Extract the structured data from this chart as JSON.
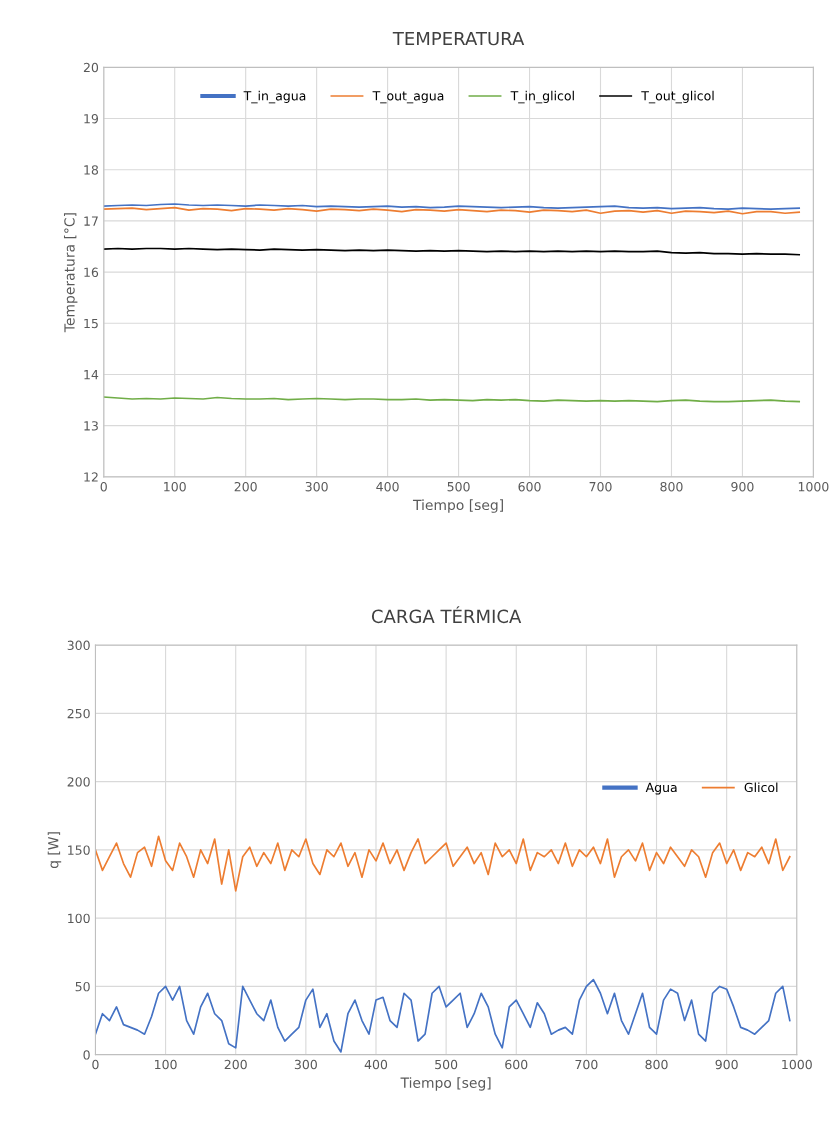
{
  "chart_data": [
    {
      "type": "line",
      "title": "TEMPERATURA",
      "xlabel": "Tiempo [seg]",
      "ylabel": "Temperatura [°C]",
      "x": [
        0,
        20,
        40,
        60,
        80,
        100,
        120,
        140,
        160,
        180,
        200,
        220,
        240,
        260,
        280,
        300,
        320,
        340,
        360,
        380,
        400,
        420,
        440,
        460,
        480,
        500,
        520,
        540,
        560,
        580,
        600,
        620,
        640,
        660,
        680,
        700,
        720,
        740,
        760,
        780,
        800,
        820,
        840,
        860,
        880,
        900,
        920,
        940,
        960,
        980
      ],
      "series": [
        {
          "name": "T_in_agua",
          "color": "#4472c4",
          "values": [
            17.29,
            17.3,
            17.31,
            17.3,
            17.32,
            17.33,
            17.31,
            17.3,
            17.31,
            17.3,
            17.29,
            17.31,
            17.3,
            17.29,
            17.3,
            17.28,
            17.29,
            17.28,
            17.27,
            17.28,
            17.29,
            17.27,
            17.28,
            17.26,
            17.27,
            17.29,
            17.28,
            17.27,
            17.26,
            17.27,
            17.28,
            17.26,
            17.25,
            17.26,
            17.27,
            17.28,
            17.29,
            17.26,
            17.25,
            17.26,
            17.24,
            17.25,
            17.26,
            17.24,
            17.23,
            17.25,
            17.24,
            17.23,
            17.24,
            17.25
          ]
        },
        {
          "name": "T_out_agua",
          "color": "#ed7d31",
          "values": [
            17.23,
            17.24,
            17.25,
            17.22,
            17.24,
            17.26,
            17.21,
            17.24,
            17.23,
            17.2,
            17.24,
            17.23,
            17.21,
            17.24,
            17.22,
            17.19,
            17.23,
            17.22,
            17.2,
            17.23,
            17.21,
            17.18,
            17.22,
            17.21,
            17.19,
            17.22,
            17.2,
            17.18,
            17.21,
            17.2,
            17.17,
            17.21,
            17.2,
            17.18,
            17.21,
            17.15,
            17.19,
            17.2,
            17.17,
            17.2,
            17.15,
            17.19,
            17.18,
            17.16,
            17.19,
            17.14,
            17.18,
            17.18,
            17.15,
            17.17
          ]
        },
        {
          "name": "T_in_glicol",
          "color": "#70ad47",
          "values": [
            13.56,
            13.54,
            13.52,
            13.53,
            13.52,
            13.54,
            13.53,
            13.52,
            13.55,
            13.53,
            13.52,
            13.52,
            13.53,
            13.51,
            13.52,
            13.53,
            13.52,
            13.51,
            13.52,
            13.52,
            13.51,
            13.51,
            13.52,
            13.5,
            13.51,
            13.5,
            13.49,
            13.51,
            13.5,
            13.51,
            13.49,
            13.48,
            13.5,
            13.49,
            13.48,
            13.49,
            13.48,
            13.49,
            13.48,
            13.47,
            13.49,
            13.5,
            13.48,
            13.47,
            13.47,
            13.48,
            13.49,
            13.5,
            13.48,
            13.47
          ]
        },
        {
          "name": "T_out_glicol",
          "color": "#000000",
          "values": [
            16.45,
            16.46,
            16.45,
            16.46,
            16.46,
            16.45,
            16.46,
            16.45,
            16.44,
            16.45,
            16.44,
            16.43,
            16.45,
            16.44,
            16.43,
            16.44,
            16.43,
            16.42,
            16.43,
            16.42,
            16.43,
            16.42,
            16.41,
            16.42,
            16.41,
            16.42,
            16.41,
            16.4,
            16.41,
            16.4,
            16.41,
            16.4,
            16.41,
            16.4,
            16.41,
            16.4,
            16.41,
            16.4,
            16.4,
            16.41,
            16.38,
            16.37,
            16.38,
            16.36,
            16.36,
            16.35,
            16.36,
            16.35,
            16.35,
            16.34
          ]
        }
      ],
      "xlim": [
        0,
        1000
      ],
      "xticks": [
        0,
        100,
        200,
        300,
        400,
        500,
        600,
        700,
        800,
        900,
        1000
      ],
      "ylim": [
        12,
        20
      ],
      "yticks": [
        12,
        13,
        14,
        15,
        16,
        17,
        18,
        19,
        20
      ],
      "grid": true,
      "legend": "top",
      "marker": "none",
      "line_style": "solid"
    },
    {
      "type": "line",
      "title": "CARGA TÉRMICA",
      "xlabel": "Tiempo [seg]",
      "ylabel": "q [W]",
      "x": [
        0,
        10,
        20,
        30,
        40,
        50,
        60,
        70,
        80,
        90,
        100,
        110,
        120,
        130,
        140,
        150,
        160,
        170,
        180,
        190,
        200,
        210,
        220,
        230,
        240,
        250,
        260,
        270,
        280,
        290,
        300,
        310,
        320,
        330,
        340,
        350,
        360,
        370,
        380,
        390,
        400,
        410,
        420,
        430,
        440,
        450,
        460,
        470,
        480,
        490,
        500,
        510,
        520,
        530,
        540,
        550,
        560,
        570,
        580,
        590,
        600,
        610,
        620,
        630,
        640,
        650,
        660,
        670,
        680,
        690,
        700,
        710,
        720,
        730,
        740,
        750,
        760,
        770,
        780,
        790,
        800,
        810,
        820,
        830,
        840,
        850,
        860,
        870,
        880,
        890,
        900,
        910,
        920,
        930,
        940,
        950,
        960,
        970,
        980,
        990
      ],
      "series": [
        {
          "name": "Agua",
          "color": "#4472c4",
          "values": [
            15,
            30,
            25,
            35,
            22,
            20,
            18,
            15,
            28,
            45,
            50,
            40,
            50,
            25,
            15,
            35,
            45,
            30,
            25,
            8,
            5,
            50,
            40,
            30,
            25,
            40,
            20,
            10,
            15,
            20,
            40,
            48,
            20,
            30,
            10,
            2,
            30,
            40,
            25,
            15,
            40,
            42,
            25,
            20,
            45,
            40,
            10,
            15,
            45,
            50,
            35,
            40,
            45,
            20,
            30,
            45,
            35,
            15,
            5,
            35,
            40,
            30,
            20,
            38,
            30,
            15,
            18,
            20,
            15,
            40,
            50,
            55,
            45,
            30,
            45,
            25,
            15,
            30,
            45,
            20,
            15,
            40,
            48,
            45,
            25,
            40,
            15,
            10,
            45,
            50,
            48,
            35,
            20,
            18,
            15,
            20,
            25,
            45,
            50,
            25
          ]
        },
        {
          "name": "Glicol",
          "color": "#ed7d31",
          "values": [
            150,
            135,
            145,
            155,
            140,
            130,
            148,
            152,
            138,
            160,
            142,
            135,
            155,
            145,
            130,
            150,
            140,
            158,
            125,
            150,
            120,
            145,
            152,
            138,
            148,
            140,
            155,
            135,
            150,
            145,
            158,
            140,
            132,
            150,
            145,
            155,
            138,
            148,
            130,
            150,
            142,
            155,
            140,
            150,
            135,
            148,
            158,
            140,
            145,
            150,
            155,
            138,
            145,
            152,
            140,
            148,
            132,
            155,
            145,
            150,
            140,
            158,
            135,
            148,
            145,
            150,
            140,
            155,
            138,
            150,
            145,
            152,
            140,
            158,
            130,
            145,
            150,
            142,
            155,
            135,
            148,
            140,
            152,
            145,
            138,
            150,
            145,
            130,
            148,
            155,
            140,
            150,
            135,
            148,
            145,
            152,
            140,
            158,
            135,
            145
          ]
        }
      ],
      "xlim": [
        0,
        1000
      ],
      "xticks": [
        0,
        100,
        200,
        300,
        400,
        500,
        600,
        700,
        800,
        900,
        1000
      ],
      "ylim": [
        0,
        300
      ],
      "yticks": [
        0,
        50,
        100,
        150,
        200,
        250,
        300
      ],
      "grid": true,
      "legend": "right",
      "marker": "none",
      "line_style": "solid"
    }
  ]
}
